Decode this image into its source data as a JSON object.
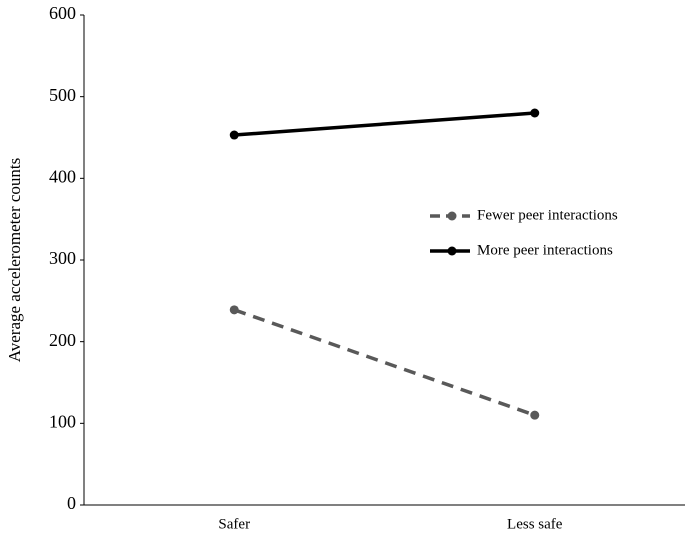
{
  "chart_data": {
    "type": "line",
    "y_label": "Average accelerometer counts",
    "categories": [
      "Safer",
      "Less safe"
    ],
    "series": [
      {
        "name": "Fewer peer interactions",
        "color": "#595959",
        "linestyle": "dashed",
        "values": [
          239,
          110
        ]
      },
      {
        "name": "More peer interactions",
        "color": "#000000",
        "linestyle": "solid",
        "values": [
          453,
          480
        ]
      }
    ],
    "ylim": [
      0,
      600
    ],
    "yticks": [
      0,
      100,
      200,
      300,
      400,
      500,
      600
    ],
    "grid": false,
    "legend": "right"
  }
}
